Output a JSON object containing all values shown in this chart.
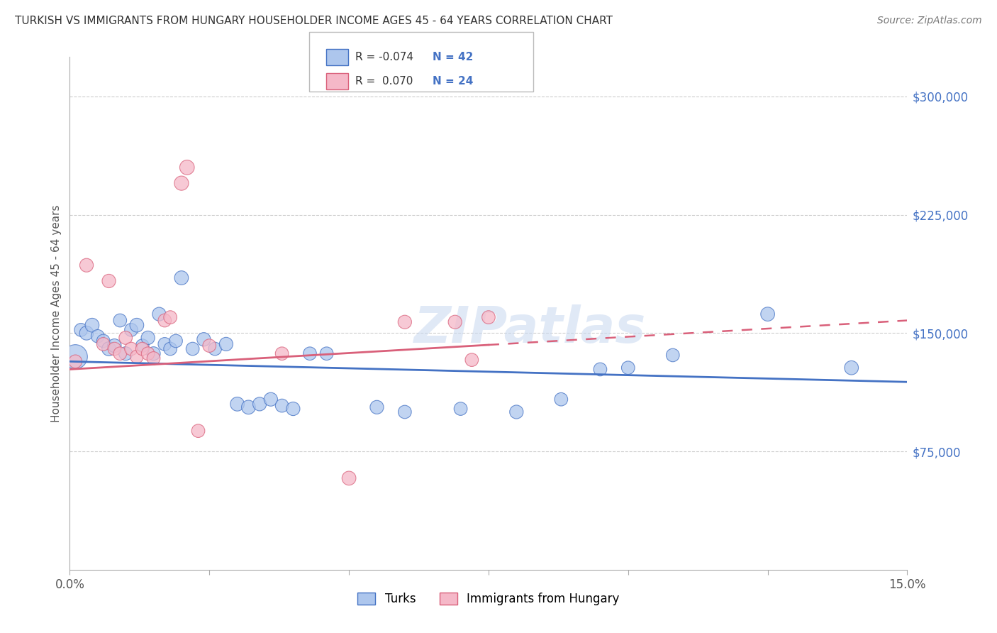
{
  "title": "TURKISH VS IMMIGRANTS FROM HUNGARY HOUSEHOLDER INCOME AGES 45 - 64 YEARS CORRELATION CHART",
  "source": "Source: ZipAtlas.com",
  "ylabel": "Householder Income Ages 45 - 64 years",
  "xlim": [
    0,
    0.15
  ],
  "ylim": [
    0,
    325000
  ],
  "ytick_labels_right": [
    "$75,000",
    "$150,000",
    "$225,000",
    "$300,000"
  ],
  "ytick_values_right": [
    75000,
    150000,
    225000,
    300000
  ],
  "grid_color": "#cccccc",
  "background_color": "#ffffff",
  "legend_R1": "-0.074",
  "legend_N1": "42",
  "legend_R2": "0.070",
  "legend_N2": "24",
  "legend_label1": "Turks",
  "legend_label2": "Immigrants from Hungary",
  "blue_color": "#adc6ed",
  "pink_color": "#f5b8c8",
  "line_blue": "#4472c4",
  "line_pink": "#d9607a",
  "watermark": "ZIPatlas",
  "turks_x": [
    0.001,
    0.002,
    0.003,
    0.004,
    0.005,
    0.006,
    0.007,
    0.008,
    0.009,
    0.01,
    0.011,
    0.012,
    0.013,
    0.014,
    0.015,
    0.016,
    0.017,
    0.018,
    0.019,
    0.02,
    0.022,
    0.024,
    0.026,
    0.028,
    0.03,
    0.032,
    0.034,
    0.036,
    0.038,
    0.04,
    0.043,
    0.046,
    0.055,
    0.06,
    0.07,
    0.08,
    0.088,
    0.095,
    0.1,
    0.108,
    0.125,
    0.14
  ],
  "turks_y": [
    135000,
    152000,
    150000,
    155000,
    148000,
    145000,
    140000,
    142000,
    158000,
    137000,
    152000,
    155000,
    142000,
    147000,
    137000,
    162000,
    143000,
    140000,
    145000,
    185000,
    140000,
    146000,
    140000,
    143000,
    105000,
    103000,
    105000,
    108000,
    104000,
    102000,
    137000,
    137000,
    103000,
    100000,
    102000,
    100000,
    108000,
    127000,
    128000,
    136000,
    162000,
    128000
  ],
  "turks_sizes": [
    600,
    180,
    200,
    200,
    180,
    180,
    200,
    190,
    180,
    190,
    180,
    200,
    180,
    190,
    190,
    190,
    180,
    180,
    180,
    200,
    180,
    190,
    180,
    190,
    200,
    200,
    190,
    190,
    180,
    190,
    180,
    180,
    190,
    180,
    180,
    190,
    180,
    180,
    180,
    180,
    200,
    200
  ],
  "hungary_x": [
    0.001,
    0.003,
    0.006,
    0.007,
    0.008,
    0.009,
    0.01,
    0.011,
    0.012,
    0.013,
    0.014,
    0.015,
    0.017,
    0.018,
    0.02,
    0.021,
    0.023,
    0.025,
    0.038,
    0.05,
    0.06,
    0.069,
    0.072,
    0.075
  ],
  "hungary_y": [
    132000,
    193000,
    143000,
    183000,
    140000,
    137000,
    147000,
    140000,
    135000,
    140000,
    137000,
    134000,
    158000,
    160000,
    245000,
    255000,
    88000,
    142000,
    137000,
    58000,
    157000,
    157000,
    133000,
    160000
  ],
  "hungary_sizes": [
    180,
    190,
    180,
    190,
    180,
    180,
    180,
    180,
    180,
    180,
    180,
    180,
    180,
    180,
    210,
    220,
    180,
    180,
    180,
    200,
    190,
    190,
    180,
    180
  ],
  "blue_trendline_y0": 132000,
  "blue_trendline_y1": 119000,
  "pink_trendline_y0": 127000,
  "pink_trendline_y1": 158000
}
